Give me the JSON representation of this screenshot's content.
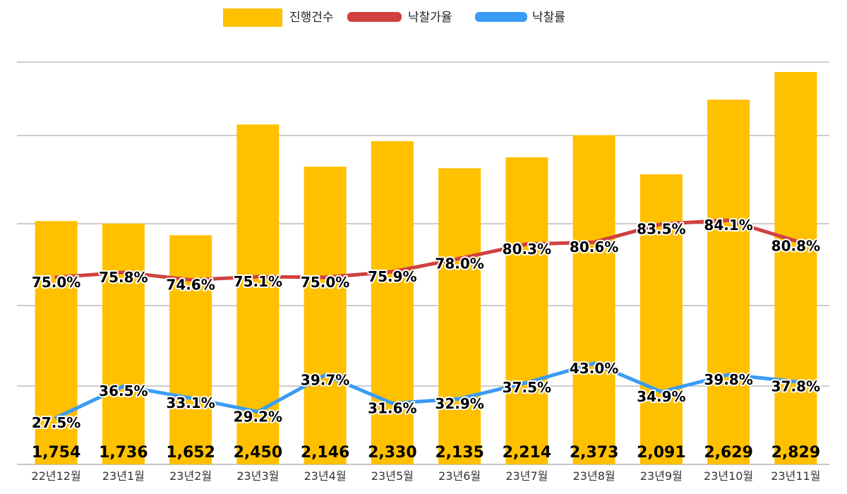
{
  "chart_data": {
    "type": "bar",
    "title": "",
    "xlabel": "",
    "ylabel": "",
    "categories": [
      "22년12월",
      "23년1월",
      "23년2월",
      "23년3월",
      "23년4월",
      "23년5월",
      "23년6월",
      "23년7월",
      "23년8월",
      "23년9월",
      "23년10월",
      "23년11월"
    ],
    "ylim": [
      0,
      2900
    ],
    "grid": true,
    "legend_placement": "top-center",
    "series": [
      {
        "name": "진행건수",
        "type": "bar",
        "color": "#FFC000",
        "values": [
          1754,
          1736,
          1652,
          2450,
          2146,
          2330,
          2135,
          2214,
          2373,
          2091,
          2629,
          2829
        ],
        "labels": [
          "1,754",
          "1,736",
          "1,652",
          "2,450",
          "2,146",
          "2,330",
          "2,135",
          "2,214",
          "2,373",
          "2,091",
          "2,629",
          "2,829"
        ]
      },
      {
        "name": "낙찰가율",
        "type": "line",
        "color": "#D04040",
        "axis_range": [
          45.2,
          109.3
        ],
        "values": [
          75.0,
          75.8,
          74.6,
          75.1,
          75.0,
          75.9,
          78.0,
          80.3,
          80.6,
          83.5,
          84.1,
          80.8
        ],
        "labels": [
          "75.0%",
          "75.8%",
          "74.6%",
          "75.1%",
          "75.0%",
          "75.9%",
          "78.0%",
          "80.3%",
          "80.6%",
          "83.5%",
          "84.1%",
          "80.8%"
        ]
      },
      {
        "name": "낙찰률",
        "type": "line",
        "color": "#3A9BF5",
        "axis_range": [
          14.2,
          128.9
        ],
        "values": [
          27.5,
          36.5,
          33.1,
          29.2,
          39.7,
          31.6,
          32.9,
          37.5,
          43.0,
          34.9,
          39.8,
          37.8
        ],
        "labels": [
          "27.5%",
          "36.5%",
          "33.1%",
          "29.2%",
          "39.7%",
          "31.6%",
          "32.9%",
          "37.5%",
          "43.0%",
          "34.9%",
          "39.8%",
          "37.8%"
        ]
      }
    ]
  }
}
